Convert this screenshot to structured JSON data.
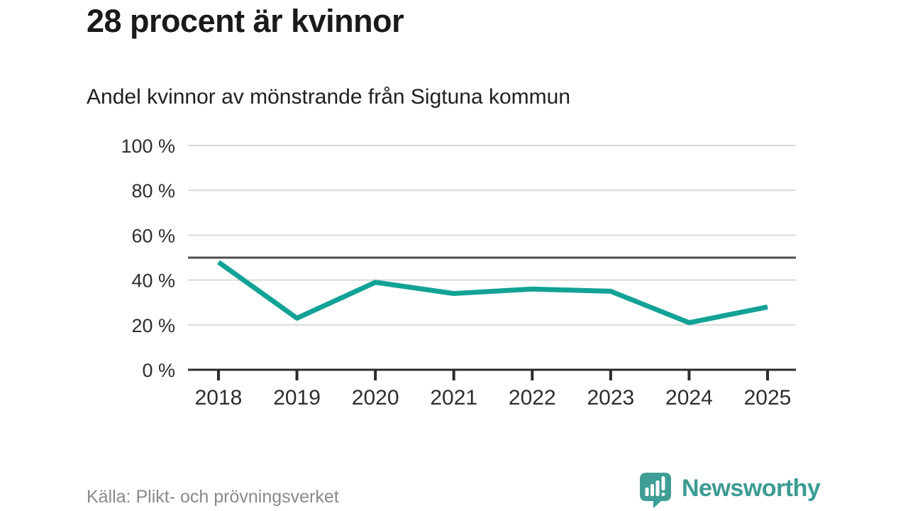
{
  "header": {
    "title": "28 procent är kvinnor",
    "subtitle": "Andel kvinnor av mönstrande från Sigtuna kommun"
  },
  "footer": {
    "source": "Källa: Plikt- och prövningsverket",
    "brand": "Newsworthy"
  },
  "colors": {
    "line": "#13a296",
    "grid": "#d9d9d9",
    "axis": "#2b2b2b",
    "reference": "#4d4d4d",
    "tick_text": "#2e2e2e",
    "brand": "#3b9b92"
  },
  "chart_data": {
    "type": "line",
    "categories": [
      "2018",
      "2019",
      "2020",
      "2021",
      "2022",
      "2023",
      "2024",
      "2025"
    ],
    "series": [
      {
        "name": "Andel kvinnor av mönstrande",
        "values": [
          48,
          23,
          39,
          34,
          36,
          35,
          21,
          28
        ]
      }
    ],
    "title": "28 procent är kvinnor",
    "subtitle": "Andel kvinnor av mönstrande från Sigtuna kommun",
    "xlabel": "",
    "ylabel": "",
    "ylim": [
      0,
      100
    ],
    "yticks": [
      0,
      20,
      40,
      60,
      80,
      100
    ],
    "ytick_suffix": " %",
    "reference_line": 50,
    "grid": true,
    "legend": false,
    "source": "Källa: Plikt- och prövningsverket"
  }
}
